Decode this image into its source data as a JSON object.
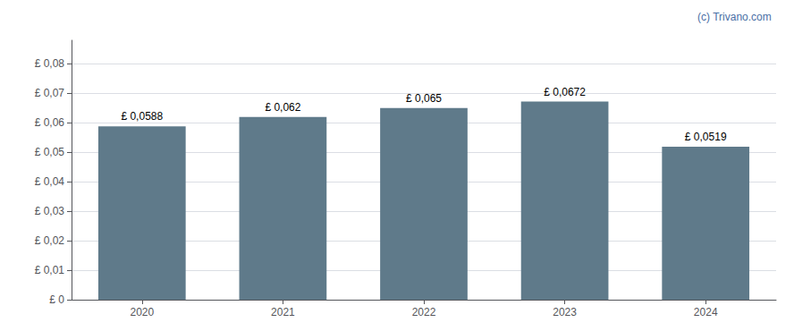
{
  "chart_data": {
    "type": "bar",
    "categories": [
      "2020",
      "2021",
      "2022",
      "2023",
      "2024"
    ],
    "values": [
      0.0588,
      0.062,
      0.065,
      0.0672,
      0.0519
    ],
    "value_labels": [
      "£ 0,0588",
      "£ 0,062",
      "£ 0,065",
      "£ 0,0672",
      "£ 0,0519"
    ],
    "data_labels": true,
    "color": "#5f7a8a",
    "ylim": [
      0,
      0.088
    ],
    "yticks": [
      {
        "value": 0,
        "label": "£ 0"
      },
      {
        "value": 0.01,
        "label": "£ 0,01"
      },
      {
        "value": 0.02,
        "label": "£ 0,02"
      },
      {
        "value": 0.03,
        "label": "£ 0,03"
      },
      {
        "value": 0.04,
        "label": "£ 0,04"
      },
      {
        "value": 0.05,
        "label": "£ 0,05"
      },
      {
        "value": 0.06,
        "label": "£ 0,06"
      },
      {
        "value": 0.07,
        "label": "£ 0,07"
      },
      {
        "value": 0.08,
        "label": "£ 0,08"
      }
    ],
    "grid": true,
    "annotation": "(c) Trivano.com"
  }
}
